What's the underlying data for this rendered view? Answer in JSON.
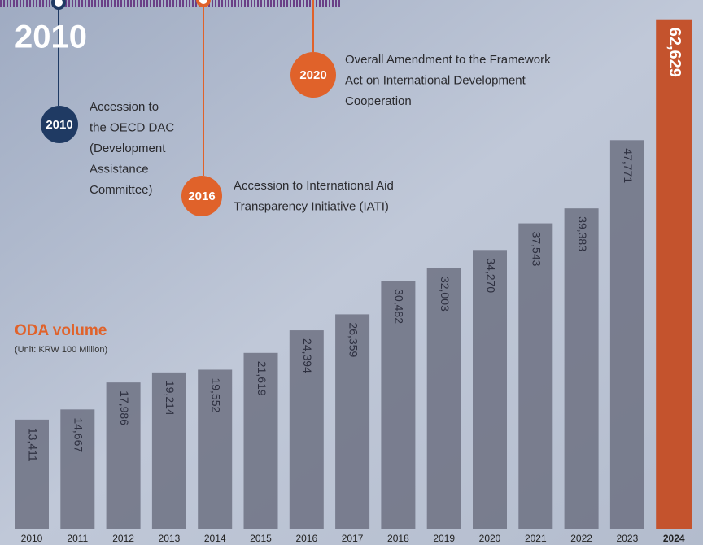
{
  "chart_data": {
    "type": "bar",
    "title": "ODA volume",
    "subtitle": "(Unit: KRW 100 Million)",
    "categories": [
      "2010",
      "2011",
      "2012",
      "2013",
      "2014",
      "2015",
      "2016",
      "2017",
      "2018",
      "2019",
      "2020",
      "2021",
      "2022",
      "2023",
      "2024"
    ],
    "values": [
      13411,
      14667,
      17986,
      19214,
      19552,
      21619,
      24394,
      26359,
      30482,
      32003,
      34270,
      37543,
      39383,
      47771,
      62629
    ],
    "value_labels": [
      "13,411",
      "14,667",
      "17,986",
      "19,214",
      "19,552",
      "21,619",
      "24,394",
      "26,359",
      "30,482",
      "32,003",
      "34,270",
      "37,543",
      "39,383",
      "47,771",
      "62,629"
    ],
    "colors": [
      "#6d7183",
      "#6d7183",
      "#6d7183",
      "#6d7183",
      "#6d7183",
      "#6d7183",
      "#6d7183",
      "#6d7183",
      "#6d7183",
      "#6d7183",
      "#6d7183",
      "#6d7183",
      "#6d7183",
      "#6d7183",
      "#c4532d"
    ],
    "ylim": [
      0,
      65000
    ]
  },
  "timeline": {
    "heading": "2010",
    "milestones": [
      {
        "year": "2010",
        "lines": [
          "Accession to",
          "the OECD DAC",
          "(Development",
          "Assistance",
          "Committee)"
        ]
      },
      {
        "year": "2016",
        "lines": [
          "Accession to International Aid",
          "Transparency Initiative (IATI)"
        ]
      },
      {
        "year": "2020",
        "lines": [
          "Overall Amendment to the Framework",
          "Act on International Development",
          "Cooperation"
        ]
      }
    ]
  }
}
